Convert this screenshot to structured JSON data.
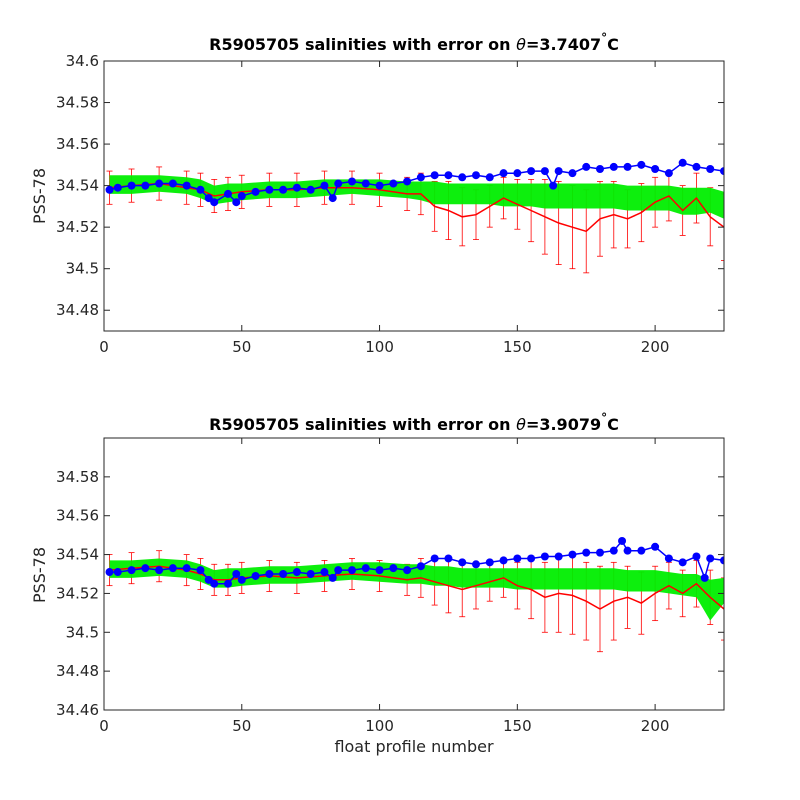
{
  "colors": {
    "ref_errorbars": "#ff0000",
    "ref_mean": "#ff0000",
    "float_band": "#00ee00",
    "float_points": "#0000ff",
    "axes": "#262626"
  },
  "chart_data": [
    {
      "type": "line",
      "title_prefix": "R5905705 salinities with error on ",
      "title_symbol": "θ",
      "title_value": "=3.7407",
      "title_unit_deg": "°",
      "title_unit": "C",
      "xlabel": "",
      "ylabel": "PSS-78",
      "xlim": [
        0,
        225
      ],
      "ylim": [
        34.47,
        34.6
      ],
      "xticks": [
        0,
        50,
        100,
        150,
        200
      ],
      "xtick_labels": [
        "0",
        "50",
        "100",
        "150",
        "200"
      ],
      "yticks": [
        34.48,
        34.5,
        34.52,
        34.54,
        34.56,
        34.58,
        34.6
      ],
      "ytick_labels": [
        "34.48",
        "34.5",
        "34.52",
        "34.54",
        "34.56",
        "34.58",
        "34.6"
      ],
      "grid": false,
      "series": [
        {
          "role": "reference-mean-with-error",
          "x": [
            2,
            10,
            20,
            30,
            35,
            40,
            45,
            50,
            60,
            70,
            80,
            90,
            100,
            110,
            115,
            120,
            125,
            130,
            135,
            140,
            145,
            150,
            155,
            160,
            165,
            170,
            175,
            180,
            185,
            190,
            195,
            200,
            205,
            210,
            215,
            220,
            225
          ],
          "y": [
            34.539,
            34.54,
            34.541,
            34.539,
            34.538,
            34.535,
            34.536,
            34.537,
            34.538,
            34.538,
            34.539,
            34.539,
            34.538,
            34.536,
            34.536,
            34.53,
            34.528,
            34.525,
            34.526,
            34.53,
            34.534,
            34.531,
            34.528,
            34.525,
            34.522,
            34.52,
            34.518,
            34.524,
            34.526,
            34.524,
            34.527,
            34.532,
            34.535,
            34.528,
            34.534,
            34.525,
            34.52
          ],
          "err": [
            0.008,
            0.008,
            0.008,
            0.008,
            0.008,
            0.008,
            0.008,
            0.008,
            0.008,
            0.008,
            0.008,
            0.008,
            0.008,
            0.008,
            0.01,
            0.012,
            0.014,
            0.014,
            0.012,
            0.01,
            0.01,
            0.012,
            0.015,
            0.018,
            0.02,
            0.02,
            0.02,
            0.018,
            0.016,
            0.014,
            0.014,
            0.012,
            0.012,
            0.012,
            0.012,
            0.014,
            0.016
          ]
        },
        {
          "role": "float-calibrated-band",
          "x": [
            2,
            10,
            20,
            30,
            35,
            40,
            45,
            50,
            60,
            70,
            80,
            90,
            100,
            110,
            115,
            120,
            125,
            130,
            135,
            140,
            145,
            150,
            155,
            160,
            165,
            170,
            175,
            180,
            185,
            190,
            195,
            200,
            205,
            210,
            215,
            220,
            225
          ],
          "lower": [
            34.536,
            34.536,
            34.537,
            34.536,
            34.534,
            34.531,
            34.532,
            34.533,
            34.534,
            34.534,
            34.535,
            34.536,
            34.535,
            34.534,
            34.533,
            34.531,
            34.531,
            34.531,
            34.531,
            34.531,
            34.53,
            34.53,
            34.53,
            34.529,
            34.529,
            34.529,
            34.529,
            34.529,
            34.529,
            34.528,
            34.528,
            34.528,
            34.528,
            34.526,
            34.526,
            34.527,
            34.524
          ],
          "upper": [
            34.545,
            34.545,
            34.545,
            34.544,
            34.543,
            34.54,
            34.541,
            34.541,
            34.542,
            34.542,
            34.543,
            34.543,
            34.543,
            34.542,
            34.542,
            34.542,
            34.541,
            34.541,
            34.541,
            34.541,
            34.541,
            34.541,
            34.541,
            34.541,
            34.541,
            34.541,
            34.541,
            34.541,
            34.541,
            34.54,
            34.54,
            34.54,
            34.54,
            34.539,
            34.539,
            34.539,
            34.537
          ]
        },
        {
          "role": "float-raw-salinity",
          "x": [
            2,
            5,
            10,
            15,
            20,
            25,
            30,
            35,
            38,
            40,
            45,
            48,
            50,
            55,
            60,
            65,
            70,
            75,
            80,
            83,
            85,
            90,
            95,
            100,
            105,
            110,
            115,
            120,
            125,
            130,
            135,
            140,
            145,
            150,
            155,
            160,
            163,
            165,
            170,
            175,
            180,
            185,
            190,
            195,
            200,
            205,
            210,
            215,
            220,
            225
          ],
          "y": [
            34.538,
            34.539,
            34.54,
            34.54,
            34.541,
            34.541,
            34.54,
            34.538,
            34.534,
            34.532,
            34.536,
            34.532,
            34.535,
            34.537,
            34.538,
            34.538,
            34.539,
            34.538,
            34.54,
            34.534,
            34.541,
            34.542,
            34.541,
            34.54,
            34.541,
            34.542,
            34.544,
            34.545,
            34.545,
            34.544,
            34.545,
            34.544,
            34.546,
            34.546,
            34.547,
            34.547,
            34.54,
            34.547,
            34.546,
            34.549,
            34.548,
            34.549,
            34.549,
            34.55,
            34.548,
            34.546,
            34.551,
            34.549,
            34.548,
            34.547
          ]
        }
      ]
    },
    {
      "type": "line",
      "title_prefix": "R5905705 salinities with error on ",
      "title_symbol": "θ",
      "title_value": "=3.9079",
      "title_unit_deg": "°",
      "title_unit": "C",
      "xlabel": "float profile number",
      "ylabel": "PSS-78",
      "xlim": [
        0,
        225
      ],
      "ylim": [
        34.46,
        34.6
      ],
      "xticks": [
        0,
        50,
        100,
        150,
        200
      ],
      "xtick_labels": [
        "0",
        "50",
        "100",
        "150",
        "200"
      ],
      "yticks": [
        34.46,
        34.48,
        34.5,
        34.52,
        34.54,
        34.56,
        34.58
      ],
      "ytick_labels": [
        "34.46",
        "34.48",
        "34.5",
        "34.52",
        "34.54",
        "34.56",
        "34.58"
      ],
      "grid": false,
      "series": [
        {
          "role": "reference-mean-with-error",
          "x": [
            2,
            10,
            20,
            30,
            35,
            40,
            45,
            50,
            60,
            70,
            80,
            90,
            100,
            110,
            115,
            120,
            125,
            130,
            135,
            140,
            145,
            150,
            155,
            160,
            165,
            170,
            175,
            180,
            185,
            190,
            195,
            200,
            205,
            210,
            215,
            220,
            225
          ],
          "y": [
            34.532,
            34.533,
            34.534,
            34.532,
            34.53,
            34.527,
            34.527,
            34.528,
            34.529,
            34.528,
            34.529,
            34.53,
            34.529,
            34.527,
            34.528,
            34.526,
            34.524,
            34.522,
            34.524,
            34.526,
            34.528,
            34.524,
            34.522,
            34.518,
            34.52,
            34.519,
            34.516,
            34.512,
            34.516,
            34.518,
            34.515,
            34.52,
            34.524,
            34.52,
            34.525,
            34.518,
            34.512
          ],
          "err": [
            0.008,
            0.008,
            0.008,
            0.008,
            0.008,
            0.008,
            0.008,
            0.008,
            0.008,
            0.008,
            0.008,
            0.008,
            0.008,
            0.008,
            0.01,
            0.012,
            0.014,
            0.014,
            0.012,
            0.01,
            0.01,
            0.012,
            0.015,
            0.018,
            0.02,
            0.02,
            0.02,
            0.022,
            0.02,
            0.016,
            0.016,
            0.014,
            0.012,
            0.012,
            0.012,
            0.014,
            0.016
          ]
        },
        {
          "role": "float-calibrated-band",
          "x": [
            2,
            10,
            20,
            30,
            35,
            40,
            45,
            50,
            60,
            70,
            80,
            90,
            100,
            110,
            115,
            120,
            125,
            130,
            135,
            140,
            145,
            150,
            155,
            160,
            165,
            170,
            175,
            180,
            185,
            190,
            195,
            200,
            205,
            210,
            215,
            220,
            225
          ],
          "lower": [
            34.528,
            34.528,
            34.529,
            34.528,
            34.526,
            34.523,
            34.523,
            34.524,
            34.525,
            34.525,
            34.526,
            34.527,
            34.526,
            34.525,
            34.525,
            34.524,
            34.524,
            34.523,
            34.523,
            34.523,
            34.523,
            34.522,
            34.522,
            34.522,
            34.522,
            34.522,
            34.522,
            34.522,
            34.522,
            34.521,
            34.521,
            34.521,
            34.52,
            34.519,
            34.518,
            34.506,
            34.515
          ],
          "upper": [
            34.537,
            34.537,
            34.538,
            34.537,
            34.535,
            34.532,
            34.533,
            34.533,
            34.534,
            34.534,
            34.535,
            34.536,
            34.536,
            34.535,
            34.535,
            34.534,
            34.534,
            34.533,
            34.533,
            34.533,
            34.533,
            34.533,
            34.533,
            34.533,
            34.533,
            34.533,
            34.533,
            34.533,
            34.533,
            34.532,
            34.532,
            34.532,
            34.531,
            34.53,
            34.53,
            34.527,
            34.528
          ]
        },
        {
          "role": "float-raw-salinity",
          "x": [
            2,
            5,
            10,
            15,
            20,
            25,
            30,
            35,
            38,
            40,
            45,
            48,
            50,
            55,
            60,
            65,
            70,
            75,
            80,
            83,
            85,
            90,
            95,
            100,
            105,
            110,
            115,
            120,
            125,
            130,
            135,
            140,
            145,
            150,
            155,
            160,
            165,
            170,
            175,
            180,
            185,
            188,
            190,
            195,
            200,
            205,
            210,
            215,
            218,
            220,
            225
          ],
          "y": [
            34.531,
            34.531,
            34.532,
            34.533,
            34.532,
            34.533,
            34.533,
            34.532,
            34.527,
            34.525,
            34.525,
            34.53,
            34.527,
            34.529,
            34.53,
            34.53,
            34.531,
            34.53,
            34.531,
            34.528,
            34.532,
            34.532,
            34.533,
            34.532,
            34.533,
            34.532,
            34.534,
            34.538,
            34.538,
            34.536,
            34.535,
            34.536,
            34.537,
            34.538,
            34.538,
            34.539,
            34.539,
            34.54,
            34.541,
            34.541,
            34.542,
            34.547,
            34.542,
            34.542,
            34.544,
            34.538,
            34.536,
            34.539,
            34.528,
            34.538,
            34.537
          ]
        }
      ]
    }
  ]
}
